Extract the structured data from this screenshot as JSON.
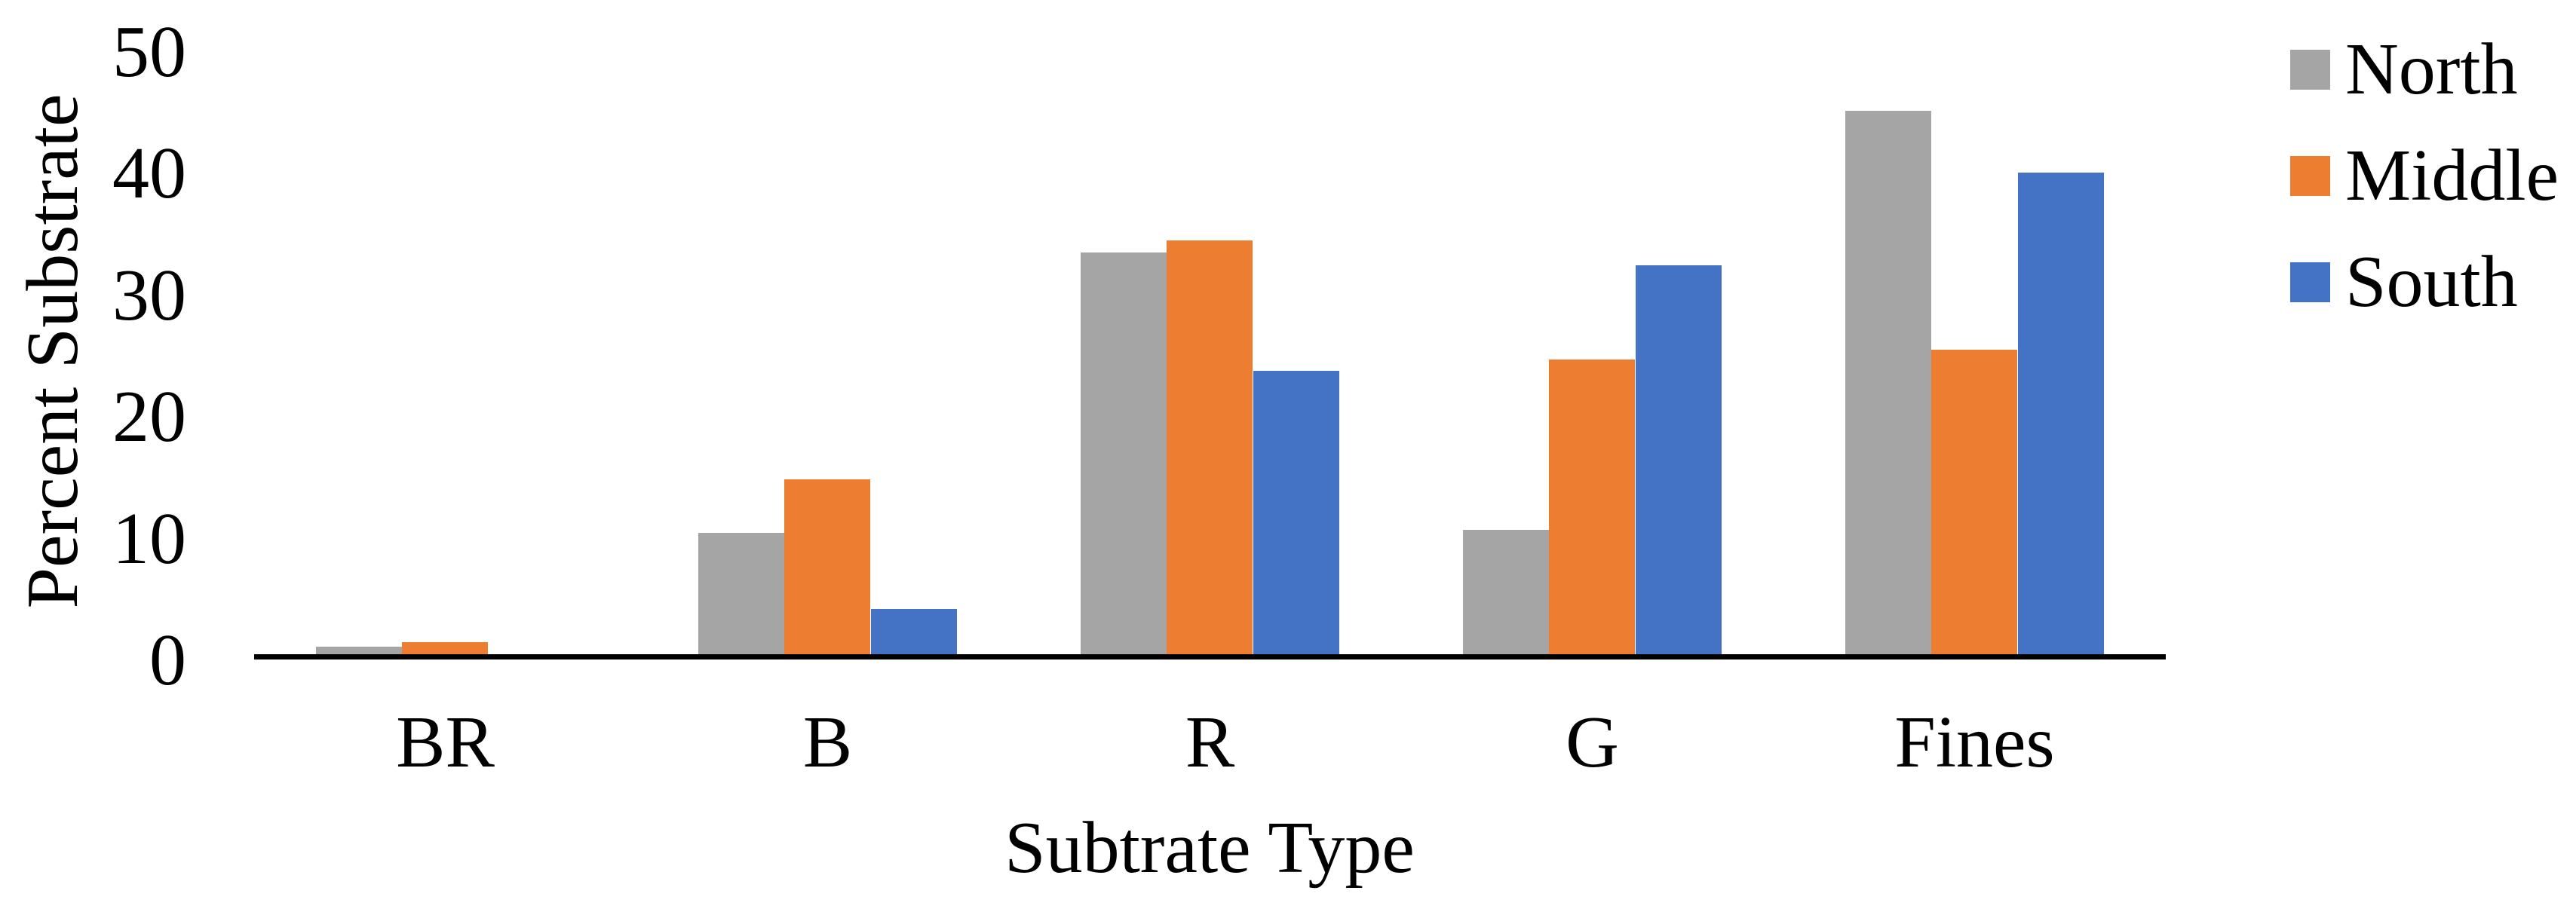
{
  "figure": {
    "background": "#FFFFFF",
    "text_color": "#000000",
    "axis_line_color": "#000000"
  },
  "chart_data": {
    "type": "bar",
    "title": "",
    "xlabel": "Subtrate Type",
    "ylabel": "Percent Substrate",
    "categories": [
      "BR",
      "B",
      "R",
      "G",
      "Fines"
    ],
    "series": [
      {
        "name": "North",
        "color": "#A5A5A5",
        "values": [
          0.6,
          10.0,
          33.0,
          10.2,
          44.7
        ]
      },
      {
        "name": "Middle",
        "color": "#ED7D31",
        "values": [
          1.0,
          14.4,
          34.0,
          24.2,
          25.0
        ]
      },
      {
        "name": "South",
        "color": "#4472C4",
        "values": [
          0.0,
          3.7,
          23.3,
          32.0,
          39.6
        ]
      }
    ],
    "ylim": [
      0,
      50
    ],
    "yticks": [
      0,
      10,
      20,
      30,
      40,
      50
    ],
    "gridlines": "none",
    "y_axis_line": "none",
    "legend_position": "right"
  }
}
